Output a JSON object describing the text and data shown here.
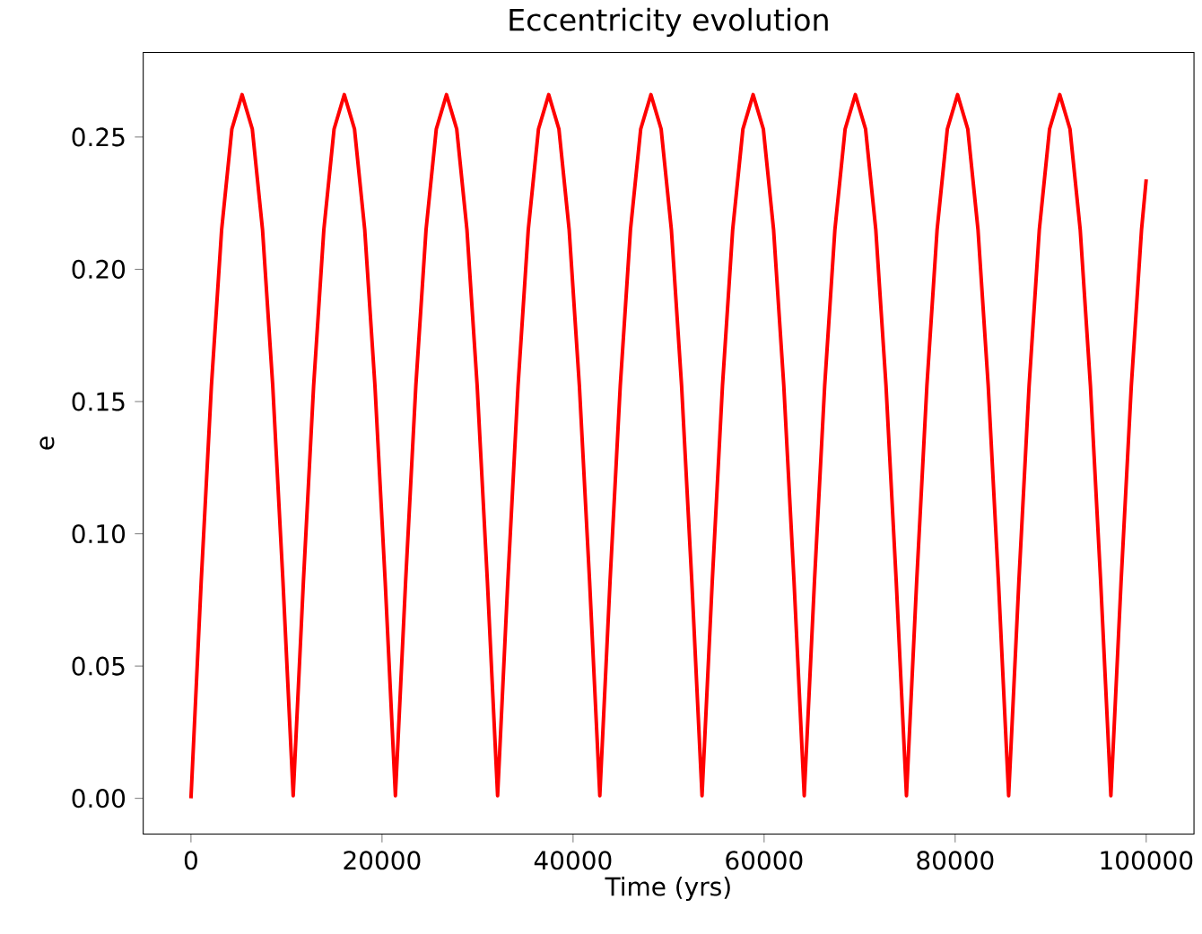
{
  "chart_data": {
    "type": "line",
    "title": "Eccentricity evolution",
    "xlabel": "Time (yrs)",
    "ylabel": "e",
    "xlim": [
      -5000,
      105000
    ],
    "ylim": [
      -0.0135,
      0.282
    ],
    "xticks": [
      0,
      20000,
      40000,
      60000,
      80000,
      100000
    ],
    "yticks": [
      {
        "value": 0,
        "label": "0.00"
      },
      {
        "value": 0.05,
        "label": "0.05"
      },
      {
        "value": 0.1,
        "label": "0.10"
      },
      {
        "value": 0.15,
        "label": "0.15"
      },
      {
        "value": 0.2,
        "label": "0.20"
      },
      {
        "value": 0.25,
        "label": "0.25"
      }
    ],
    "grid": false,
    "marker": "none",
    "line_style": "solid",
    "series": [
      {
        "color": "#ff0000",
        "x": [
          0,
          1070,
          2140,
          3210,
          4280,
          5350,
          6420,
          7490,
          8560,
          9630,
          10700,
          11770,
          12840,
          13910,
          14980,
          16050,
          17120,
          18190,
          19260,
          20330,
          21400,
          22470,
          23540,
          24610,
          25680,
          26750,
          27820,
          28890,
          29960,
          31030,
          32100,
          33170,
          34240,
          35310,
          36380,
          37450,
          38520,
          39590,
          40660,
          41730,
          42800,
          43870,
          44940,
          46010,
          47080,
          48150,
          49220,
          50290,
          51360,
          52430,
          53500,
          54570,
          55640,
          56710,
          57780,
          58850,
          59920,
          60990,
          62060,
          63130,
          64200,
          65270,
          66340,
          67410,
          68480,
          69550,
          70620,
          71690,
          72760,
          73830,
          74900,
          75970,
          77040,
          78110,
          79180,
          80250,
          81320,
          82390,
          83460,
          84530,
          85600,
          86670,
          87740,
          88810,
          89880,
          90950,
          92020,
          93090,
          94160,
          95230,
          96300,
          97370,
          98440,
          99510,
          100000
        ],
        "values": [
          0,
          0.082,
          0.156,
          0.215,
          0.253,
          0.266,
          0.253,
          0.215,
          0.156,
          0.082,
          0.001,
          0.082,
          0.156,
          0.215,
          0.253,
          0.266,
          0.253,
          0.215,
          0.156,
          0.082,
          0.001,
          0.082,
          0.156,
          0.215,
          0.253,
          0.266,
          0.253,
          0.215,
          0.156,
          0.082,
          0.001,
          0.082,
          0.156,
          0.215,
          0.253,
          0.266,
          0.253,
          0.215,
          0.156,
          0.082,
          0.001,
          0.082,
          0.156,
          0.215,
          0.253,
          0.266,
          0.253,
          0.215,
          0.156,
          0.082,
          0.001,
          0.082,
          0.156,
          0.215,
          0.253,
          0.266,
          0.253,
          0.215,
          0.156,
          0.082,
          0.001,
          0.082,
          0.156,
          0.215,
          0.253,
          0.266,
          0.253,
          0.215,
          0.156,
          0.082,
          0.001,
          0.082,
          0.156,
          0.215,
          0.253,
          0.266,
          0.253,
          0.215,
          0.156,
          0.082,
          0.001,
          0.082,
          0.156,
          0.215,
          0.253,
          0.266,
          0.253,
          0.215,
          0.156,
          0.082,
          0.001,
          0.082,
          0.156,
          0.215,
          0.234
        ]
      }
    ]
  }
}
